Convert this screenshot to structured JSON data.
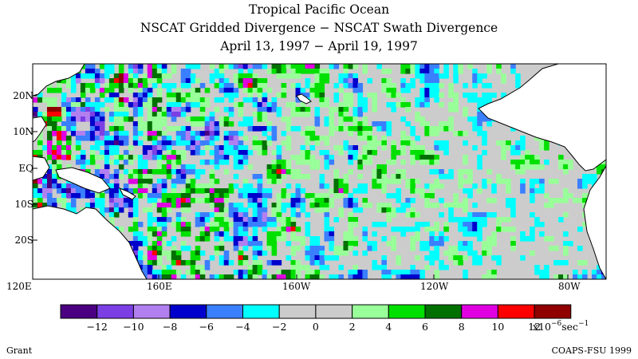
{
  "title": {
    "line1": "Tropical Pacific Ocean",
    "line2": "NSCAT Gridded Divergence − NSCAT Swath Divergence",
    "line3": "April 13, 1997 − April 19, 1997"
  },
  "map": {
    "lat_labels": [
      "20N",
      "10N",
      "EQ",
      "10S",
      "20S"
    ],
    "lon_labels": [
      "120E",
      "160E",
      "160W",
      "120W",
      "80W"
    ],
    "land_color": "#ffffff",
    "coast_color": "#000000",
    "field_name": "divergence difference",
    "lat_range": [
      "30S",
      "30N"
    ],
    "lon_range": [
      "120E",
      "70W"
    ]
  },
  "colorbar": {
    "tick_labels": [
      "−12",
      "−10",
      "−8",
      "−6",
      "−4",
      "−2",
      "0",
      "2",
      "4",
      "6",
      "8",
      "10",
      "12"
    ],
    "units_prefix": "x10",
    "units_exp": "−6",
    "units_suffix": "sec",
    "units_exp2": "−1",
    "colors": [
      "#4b0082",
      "#7b3fe4",
      "#b27ff0",
      "#0000cd",
      "#3a7fff",
      "#00ffff",
      "#cccccc",
      "#cccccc",
      "#99ff99",
      "#00e000",
      "#007000",
      "#e000e0",
      "#ff0000",
      "#900000"
    ]
  },
  "footer": {
    "left": "Grant",
    "right": "COAPS-FSU 1999"
  }
}
